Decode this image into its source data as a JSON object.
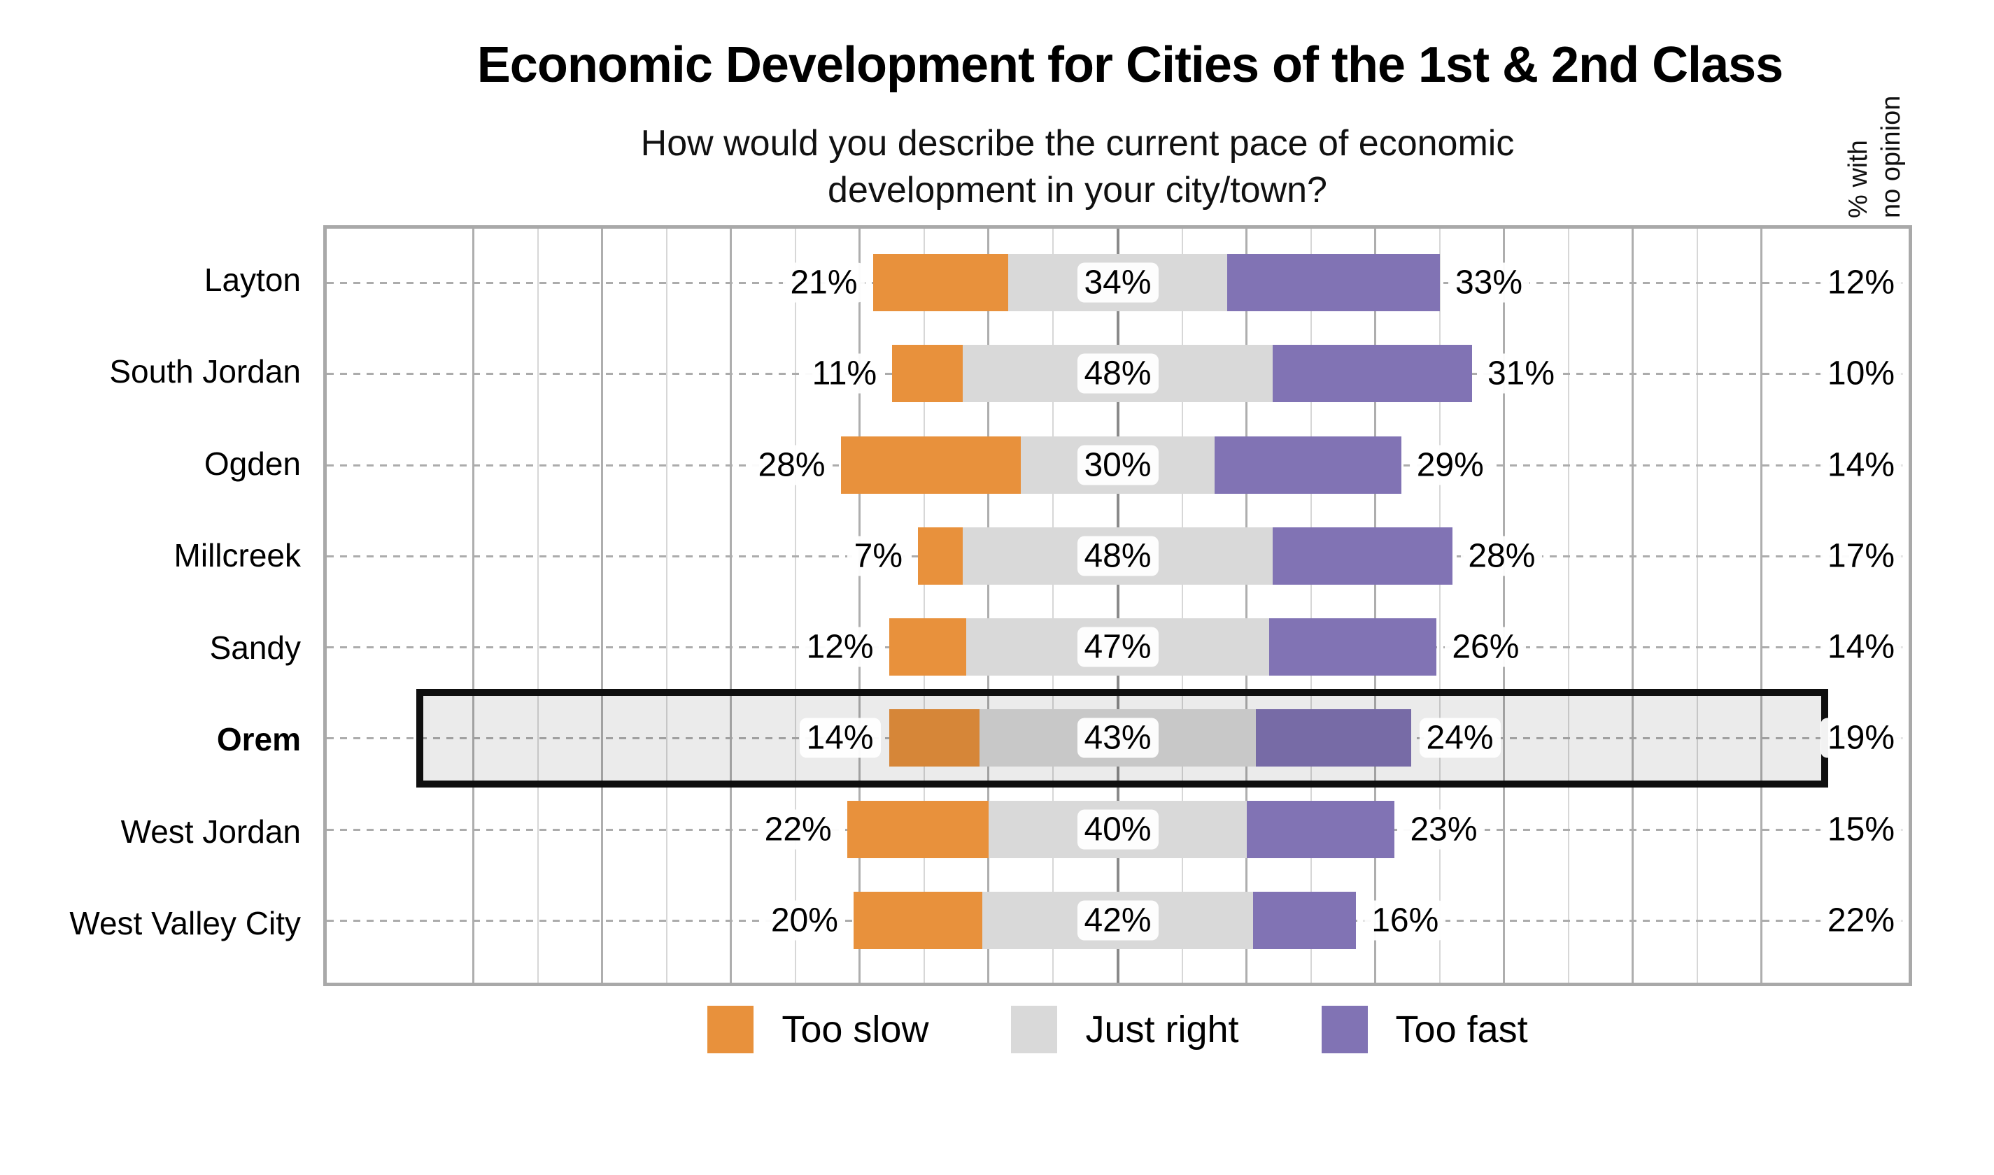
{
  "title": "Economic Development for Cities of the 1st & 2nd Class",
  "subtitle_line1": "How would you describe the current pace of economic",
  "subtitle_line2": "development in your city/town?",
  "right_axis_label_line1": "% with",
  "right_axis_label_line2": "no opinion",
  "unit": "%",
  "colors": {
    "too_slow": "#e8913c",
    "just_right": "#d9d9d9",
    "too_fast": "#8173b4",
    "highlight_border": "#0f0f0f"
  },
  "legend": {
    "items": [
      {
        "key": "too_slow",
        "label": "Too slow"
      },
      {
        "key": "just_right",
        "label": "Just right"
      },
      {
        "key": "too_fast",
        "label": "Too fast"
      }
    ]
  },
  "chart_data": {
    "type": "bar",
    "orientation": "horizontal",
    "diverging_center_series": "Just right",
    "title": "Economic Development for Cities of the 1st & 2nd Class",
    "subtitle": "How would you describe the current pace of economic development in your city/town?",
    "categories": [
      "Layton",
      "South Jordan",
      "Ogden",
      "Millcreek",
      "Sandy",
      "Orem",
      "West Jordan",
      "West Valley City"
    ],
    "series": [
      {
        "name": "Too slow",
        "values": [
          21,
          11,
          28,
          7,
          12,
          14,
          22,
          20
        ]
      },
      {
        "name": "Just right",
        "values": [
          34,
          48,
          30,
          48,
          47,
          43,
          40,
          42
        ]
      },
      {
        "name": "Too fast",
        "values": [
          33,
          31,
          29,
          28,
          26,
          24,
          23,
          16
        ]
      }
    ],
    "no_opinion": {
      "label": "% with no opinion",
      "values": [
        12,
        10,
        14,
        17,
        14,
        19,
        15,
        22
      ]
    },
    "highlighted_category": "Orem",
    "axis": {
      "gridline_step_points": 10,
      "gridline_range_points": [
        -100,
        100
      ],
      "pct_width_per_point": 0.4073
    },
    "legend_position": "bottom"
  }
}
